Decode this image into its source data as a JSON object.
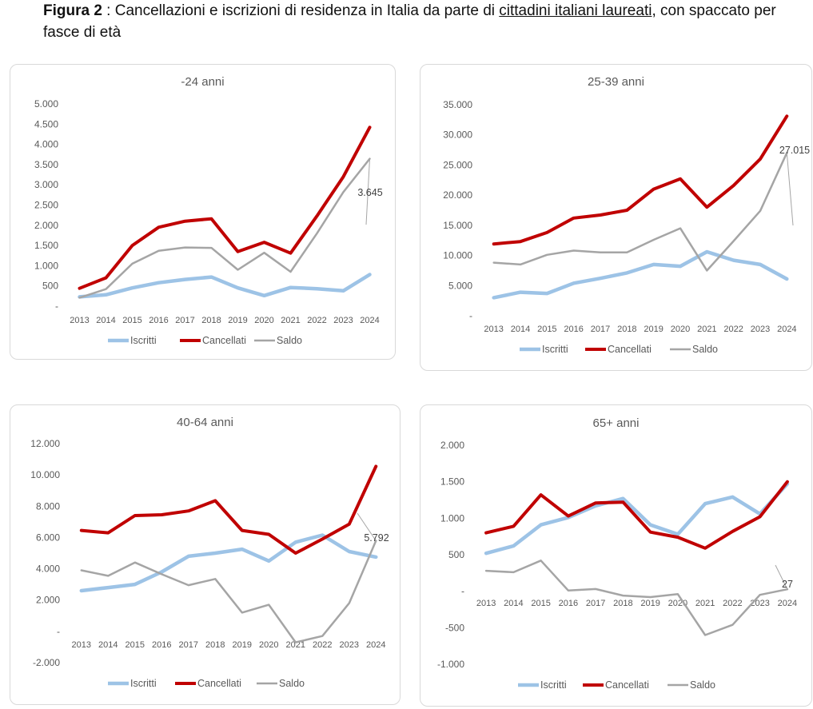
{
  "caption": {
    "label": "Figura 2",
    "text_before": " : Cancellazioni e iscrizioni di residenza in Italia da parte di ",
    "underlined": "cittadini italiani laureati",
    "text_after": ", con spaccato per fasce di età"
  },
  "colors": {
    "iscritti": "#9dc3e6",
    "cancellati": "#c00000",
    "saldo": "#a5a5a5"
  },
  "chart_data": [
    {
      "type": "line",
      "title": "-24 anni",
      "x": [
        "2013",
        "2014",
        "2015",
        "2016",
        "2017",
        "2018",
        "2019",
        "2020",
        "2021",
        "2022",
        "2023",
        "2024"
      ],
      "ylim": [
        0,
        5000
      ],
      "yticks": [
        "-",
        "500",
        "1.000",
        "1.500",
        "2.000",
        "2.500",
        "3.000",
        "3.500",
        "4.000",
        "4.500",
        "5.000"
      ],
      "series": [
        {
          "name": "Iscritti",
          "values": [
            230,
            280,
            450,
            580,
            660,
            720,
            450,
            260,
            460,
            430,
            380,
            780
          ]
        },
        {
          "name": "Cancellati",
          "values": [
            440,
            700,
            1500,
            1950,
            2100,
            2160,
            1350,
            1580,
            1310,
            2230,
            3200,
            4420
          ]
        },
        {
          "name": "Saldo",
          "values": [
            210,
            420,
            1050,
            1370,
            1450,
            1440,
            900,
            1320,
            850,
            1800,
            2820,
            3645
          ]
        }
      ],
      "annotation": "3.645",
      "legend": "bottom",
      "grid": false
    },
    {
      "type": "line",
      "title": "25-39 anni",
      "x": [
        "2013",
        "2014",
        "2015",
        "2016",
        "2017",
        "2018",
        "2019",
        "2020",
        "2021",
        "2022",
        "2023",
        "2024"
      ],
      "ylim": [
        0,
        35000
      ],
      "yticks": [
        "-",
        "5.000",
        "10.000",
        "15.000",
        "20.000",
        "25.000",
        "30.000",
        "35.000"
      ],
      "series": [
        {
          "name": "Iscritti",
          "values": [
            3000,
            3900,
            3700,
            5400,
            6200,
            7100,
            8500,
            8200,
            10600,
            9200,
            8500,
            6100
          ]
        },
        {
          "name": "Cancellati",
          "values": [
            11900,
            12300,
            13800,
            16200,
            16700,
            17500,
            21000,
            22700,
            18000,
            21600,
            26000,
            33100
          ]
        },
        {
          "name": "Saldo",
          "values": [
            8800,
            8500,
            10100,
            10800,
            10500,
            10500,
            12600,
            14500,
            7500,
            12400,
            17400,
            27015
          ]
        }
      ],
      "annotation": "27.015",
      "legend": "bottom",
      "grid": false
    },
    {
      "type": "line",
      "title": "40-64 anni",
      "x": [
        "2013",
        "2014",
        "2015",
        "2016",
        "2017",
        "2018",
        "2019",
        "2020",
        "2021",
        "2022",
        "2023",
        "2024"
      ],
      "ylim": [
        -2000,
        12000
      ],
      "yticks": [
        "-2.000",
        "-",
        "2.000",
        "4.000",
        "6.000",
        "8.000",
        "10.000",
        "12.000"
      ],
      "series": [
        {
          "name": "Iscritti",
          "values": [
            2600,
            2800,
            3000,
            3800,
            4800,
            5000,
            5250,
            4500,
            5700,
            6150,
            5100,
            4750
          ]
        },
        {
          "name": "Cancellati",
          "values": [
            6450,
            6300,
            7400,
            7450,
            7700,
            8350,
            6450,
            6200,
            5000,
            5900,
            6850,
            10550
          ]
        },
        {
          "name": "Saldo",
          "values": [
            3900,
            3550,
            4400,
            3650,
            2950,
            3350,
            1200,
            1700,
            -700,
            -300,
            1800,
            5792
          ]
        }
      ],
      "annotation": "5.792",
      "legend": "bottom",
      "grid": false
    },
    {
      "type": "line",
      "title": "65+ anni",
      "x": [
        "2013",
        "2014",
        "2015",
        "2016",
        "2017",
        "2018",
        "2019",
        "2020",
        "2021",
        "2022",
        "2023",
        "2024"
      ],
      "ylim": [
        -1000,
        2000
      ],
      "yticks": [
        "-1.000",
        "-500",
        "-",
        "500",
        "1.000",
        "1.500",
        "2.000"
      ],
      "series": [
        {
          "name": "Iscritti",
          "values": [
            520,
            620,
            910,
            1010,
            1170,
            1270,
            910,
            780,
            1200,
            1290,
            1060,
            1470
          ]
        },
        {
          "name": "Cancellati",
          "values": [
            800,
            890,
            1320,
            1030,
            1210,
            1220,
            810,
            740,
            590,
            820,
            1020,
            1500
          ]
        },
        {
          "name": "Saldo",
          "values": [
            280,
            260,
            420,
            10,
            30,
            -60,
            -80,
            -40,
            -600,
            -460,
            -50,
            27
          ]
        }
      ],
      "annotation": "27",
      "legend": "bottom",
      "grid": false
    }
  ]
}
